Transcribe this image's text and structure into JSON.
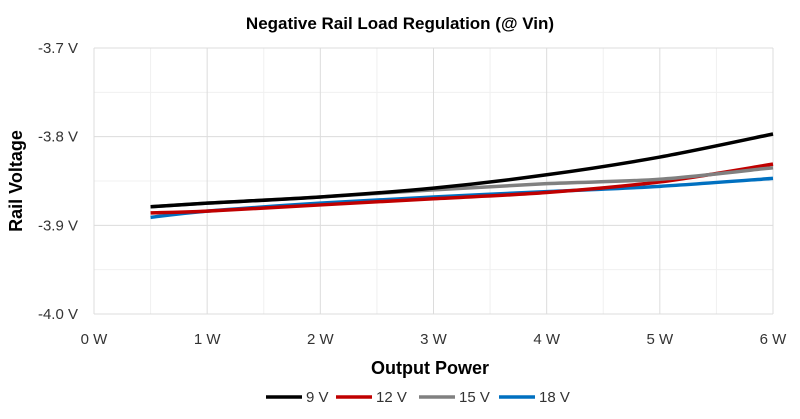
{
  "chart_data": {
    "type": "line",
    "title": "Negative Rail Load Regulation (@ Vin)",
    "xlabel": "Output Power",
    "ylabel": "Rail Voltage",
    "xlim": [
      0,
      6
    ],
    "ylim": [
      -4.0,
      -3.7
    ],
    "x_ticks": [
      0,
      1,
      2,
      3,
      4,
      5,
      6
    ],
    "x_tick_labels": [
      "0 W",
      "1 W",
      "2 W",
      "3 W",
      "4 W",
      "5 W",
      "6 W"
    ],
    "y_ticks": [
      -3.7,
      -3.8,
      -3.9,
      -4.0
    ],
    "y_tick_labels": [
      "-3.7 V",
      "-3.8 V",
      "-3.9 V",
      "-4.0 V"
    ],
    "grid": true,
    "legend_position": "bottom",
    "x": [
      0.5,
      1,
      2,
      3,
      4,
      5,
      6
    ],
    "series": [
      {
        "name": "9 V",
        "color": "#000000",
        "values": [
          -3.879,
          -3.875,
          -3.868,
          -3.858,
          -3.843,
          -3.823,
          -3.797
        ]
      },
      {
        "name": "12 V",
        "color": "#c00000",
        "values": [
          -3.886,
          -3.884,
          -3.877,
          -3.87,
          -3.863,
          -3.851,
          -3.831
        ]
      },
      {
        "name": "15 V",
        "color": "#808080",
        "values": [
          -3.879,
          -3.875,
          -3.868,
          -3.86,
          -3.853,
          -3.848,
          -3.835
        ]
      },
      {
        "name": "18 V",
        "color": "#0070c0",
        "values": [
          -3.891,
          -3.884,
          -3.875,
          -3.868,
          -3.862,
          -3.856,
          -3.847
        ]
      }
    ]
  }
}
